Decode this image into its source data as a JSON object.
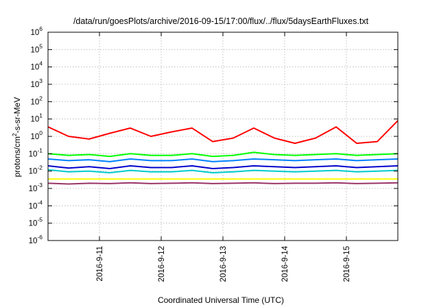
{
  "chart_data": {
    "type": "line",
    "title": "/data/run/goesPlots/archive/2016-09-15/17:00/flux/../flux/5daysEarthFluxes.txt",
    "xlabel": "Coordinated Universal Time (UTC)",
    "ylabel": {
      "base": "protons/cm",
      "sup": "2",
      "rest": "-s-sr-MeV"
    },
    "yscale": "log",
    "ylim": [
      1e-06,
      1000000.0
    ],
    "xlim": [
      "2016-09-10 04:00",
      "2016-09-15 20:00"
    ],
    "grid": true,
    "legend": "none",
    "x_ticks": [
      "2016-9-11",
      "2016-9-12",
      "2016-9-13",
      "2016-9-14",
      "2016-9-15"
    ],
    "y_ticks": [
      {
        "base": "10",
        "exp": "-6"
      },
      {
        "base": "10",
        "exp": "-5"
      },
      {
        "base": "10",
        "exp": "-4"
      },
      {
        "base": "10",
        "exp": "-3"
      },
      {
        "base": "10",
        "exp": "-2"
      },
      {
        "base": "10",
        "exp": "-1"
      },
      {
        "base": "10",
        "exp": "0"
      },
      {
        "base": "10",
        "exp": "1"
      },
      {
        "base": "10",
        "exp": "2"
      },
      {
        "base": "10",
        "exp": "3"
      },
      {
        "base": "10",
        "exp": "4"
      },
      {
        "base": "10",
        "exp": "5"
      },
      {
        "base": "10",
        "exp": "6"
      }
    ],
    "x": [
      "2016-09-10 04:00",
      "2016-09-10 12:00",
      "2016-09-10 20:00",
      "2016-09-11 04:00",
      "2016-09-11 12:00",
      "2016-09-11 20:00",
      "2016-09-12 04:00",
      "2016-09-12 12:00",
      "2016-09-12 20:00",
      "2016-09-13 04:00",
      "2016-09-13 12:00",
      "2016-09-13 20:00",
      "2016-09-14 04:00",
      "2016-09-14 12:00",
      "2016-09-14 20:00",
      "2016-09-15 04:00",
      "2016-09-15 12:00",
      "2016-09-15 20:00"
    ],
    "series": [
      {
        "color": "#ff0000",
        "values": [
          3.5,
          1.0,
          0.7,
          1.5,
          3.0,
          1.0,
          1.8,
          3.0,
          0.5,
          0.8,
          3.0,
          0.8,
          0.4,
          0.8,
          3.5,
          0.4,
          0.5,
          8.0
        ]
      },
      {
        "color": "#00ff00",
        "values": [
          0.1,
          0.08,
          0.09,
          0.07,
          0.1,
          0.08,
          0.08,
          0.1,
          0.07,
          0.08,
          0.12,
          0.09,
          0.08,
          0.09,
          0.1,
          0.08,
          0.09,
          0.1
        ]
      },
      {
        "color": "#0080ff",
        "values": [
          0.05,
          0.04,
          0.045,
          0.035,
          0.05,
          0.04,
          0.04,
          0.05,
          0.035,
          0.04,
          0.05,
          0.045,
          0.04,
          0.045,
          0.05,
          0.04,
          0.045,
          0.05
        ]
      },
      {
        "color": "#0000cc",
        "values": [
          0.02,
          0.015,
          0.018,
          0.014,
          0.02,
          0.016,
          0.016,
          0.02,
          0.014,
          0.016,
          0.02,
          0.018,
          0.016,
          0.018,
          0.02,
          0.016,
          0.018,
          0.02
        ]
      },
      {
        "color": "#00cccc",
        "values": [
          0.012,
          0.009,
          0.01,
          0.008,
          0.011,
          0.009,
          0.009,
          0.011,
          0.008,
          0.009,
          0.011,
          0.01,
          0.009,
          0.01,
          0.011,
          0.009,
          0.01,
          0.011
        ]
      },
      {
        "color": "#ffff00",
        "values": [
          0.0035,
          0.0035,
          0.0035,
          0.0035,
          0.0035,
          0.0035,
          0.0035,
          0.0035,
          0.0035,
          0.0035,
          0.0035,
          0.0035,
          0.0035,
          0.0035,
          0.0035,
          0.0035,
          0.0035,
          0.0035
        ]
      },
      {
        "color": "#993366",
        "values": [
          0.002,
          0.0018,
          0.002,
          0.0019,
          0.0021,
          0.0019,
          0.002,
          0.0021,
          0.0019,
          0.002,
          0.0021,
          0.0019,
          0.002,
          0.002,
          0.0021,
          0.0019,
          0.002,
          0.0021
        ]
      }
    ]
  }
}
